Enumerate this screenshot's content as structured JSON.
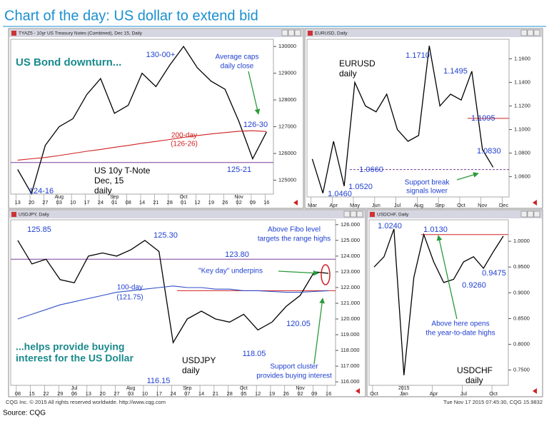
{
  "page": {
    "title": "Chart of the day: US dollar to extend bid",
    "footer_left": "CQG Inc. © 2015 All rights reserved worldwide. http://www.cqg.com",
    "footer_right": "Tue Nov 17 2015 07:45:30, CQG 15.9832",
    "source": "Source: CQG"
  },
  "chart_data": [
    {
      "type": "line",
      "header": "TYAZ5 - 10yr US Treasury Notes (Combined), Dec 15, Daily",
      "categories": [
        "13",
        "20",
        "27",
        "03",
        "10",
        "17",
        "24",
        "01",
        "08",
        "14",
        "21",
        "28",
        "01",
        "12",
        "19",
        "26",
        "02",
        "09",
        "16"
      ],
      "xticks_upper": [
        {
          "value": 3,
          "label": "Aug"
        },
        {
          "value": 7,
          "label": "Sep"
        },
        {
          "value": 12,
          "label": "Oct"
        },
        {
          "value": 16,
          "label": "Nov"
        }
      ],
      "series": [
        {
          "color": "#000000",
          "values": [
            125400,
            124500,
            126300,
            127000,
            127300,
            128200,
            128800,
            127500,
            127800,
            129000,
            128500,
            129300,
            130000,
            129200,
            128700,
            128400,
            127200,
            125800,
            126800
          ]
        },
        {
          "color": "#d02020",
          "values": [
            125750,
            125800,
            125850,
            125920,
            126000,
            126080,
            126150,
            126230,
            126300,
            126380,
            126450,
            126520,
            126600,
            126670,
            126730,
            126780,
            126830,
            126850,
            126820
          ]
        }
      ],
      "hlines": [
        {
          "value": 125660,
          "color": "#7a3f9a"
        }
      ],
      "ylim": [
        124480,
        130270
      ],
      "yticks": [
        125000,
        126000,
        127000,
        128000,
        129000,
        130000
      ],
      "annotations": [
        "US Bond downturn...",
        "130-00+",
        "Average caps",
        "daily close",
        "200-day",
        "(126-26)",
        "126-30",
        "125-21",
        "124-16",
        "US 10y T-Note",
        "Dec, 15",
        "daily"
      ]
    },
    {
      "type": "line",
      "header": "EURUSD, Daily",
      "categories": [
        "Mar",
        null,
        "Apr",
        null,
        "May",
        null,
        "Jun",
        null,
        "Jul",
        null,
        "Aug",
        null,
        "Sep",
        null,
        "Oct",
        null,
        "Nov",
        null,
        "Dec"
      ],
      "series": [
        {
          "color": "#000000",
          "values": [
            1.075,
            1.046,
            1.09,
            1.052,
            1.14,
            1.12,
            1.115,
            1.13,
            1.1,
            1.09,
            1.095,
            1.171,
            1.12,
            1.13,
            1.125,
            1.1495,
            1.083,
            1.068,
            null
          ]
        }
      ],
      "hlines": [
        {
          "value": 1.1095,
          "color": "#d02020"
        },
        {
          "value": 1.066,
          "color": "#7a3f9a"
        }
      ],
      "ylim": [
        1.0428,
        1.1766
      ],
      "yticks": [
        {
          "value": 1.06,
          "label": "1.0600"
        },
        {
          "value": 1.08,
          "label": "1.0800"
        },
        {
          "value": 1.1,
          "label": "1.1000"
        },
        {
          "value": 1.12,
          "label": "1.1200"
        },
        {
          "value": 1.14,
          "label": "1.1400"
        },
        {
          "value": 1.16,
          "label": "1.1600"
        }
      ],
      "annotations": [
        "EURUSD",
        "daily",
        "1.1710",
        "1.1495",
        "1.1095",
        "1.0830",
        "1.0660",
        "1.0520",
        "1.0460",
        "Support break",
        "signals lower"
      ]
    },
    {
      "type": "line",
      "header": "USDJPY, Daily",
      "categories": [
        "08",
        "15",
        "22",
        "29",
        "06",
        "13",
        "20",
        "27",
        "03",
        "10",
        "17",
        "24",
        "07",
        "14",
        "21",
        "28",
        "05",
        "12",
        "19",
        "26",
        "02",
        "09",
        "16"
      ],
      "xticks_upper": [
        {
          "value": 4,
          "label": "Jul"
        },
        {
          "value": 8,
          "label": "Aug"
        },
        {
          "value": 12,
          "label": "Sep"
        },
        {
          "value": 16,
          "label": "Oct"
        },
        {
          "value": 20,
          "label": "Nov"
        }
      ],
      "series": [
        {
          "color": "#000000",
          "values": [
            125.0,
            123.5,
            123.8,
            122.5,
            122.3,
            124.0,
            124.2,
            124.0,
            124.4,
            125.0,
            124.3,
            118.5,
            120.0,
            120.5,
            120.0,
            119.8,
            120.3,
            119.3,
            119.8,
            120.8,
            121.5,
            123.0,
            122.9
          ]
        },
        {
          "color": "#3050c8",
          "values": [
            120.0,
            120.3,
            120.6,
            120.9,
            121.1,
            121.3,
            121.5,
            121.7,
            121.8,
            121.9,
            122.0,
            122.1,
            122.0,
            122.0,
            121.9,
            121.9,
            121.8,
            121.8,
            121.75,
            121.7,
            121.7,
            121.75,
            121.8
          ]
        }
      ],
      "hlines": [
        {
          "value": 123.8,
          "color": "#7a3f9a"
        },
        {
          "value": 121.8,
          "color": "#d02020"
        }
      ],
      "ylim": [
        115.78,
        126.31
      ],
      "yticks": [
        {
          "value": 116,
          "label": "116.000"
        },
        {
          "value": 117,
          "label": "117.000"
        },
        {
          "value": 118,
          "label": "118.000"
        },
        {
          "value": 119,
          "label": "119.000"
        },
        {
          "value": 120,
          "label": "120.000"
        },
        {
          "value": 121,
          "label": "121.000"
        },
        {
          "value": 122,
          "label": "122.000"
        },
        {
          "value": 123,
          "label": "123.000"
        },
        {
          "value": 124,
          "label": "124.000"
        },
        {
          "value": 125,
          "label": "125.000"
        },
        {
          "value": 126,
          "label": "126.000"
        }
      ],
      "annotations": [
        "125.85",
        "125.30",
        "123.80",
        "Above Fibo level",
        "targets the range highs",
        "\"Key day\" underpins",
        "100-day",
        "(121.75)",
        "120.05",
        "118.05",
        "116.15",
        "USDJPY",
        "daily",
        "Support cluster",
        "provides buying interest",
        "...helps provide buying",
        "interest for the US Dollar"
      ]
    },
    {
      "type": "line",
      "header": "USDCHF, Daily",
      "categories": [
        "Oct",
        null,
        null,
        "Jan",
        null,
        null,
        "Apr",
        null,
        null,
        "Jul",
        null,
        null,
        "Oct",
        null
      ],
      "xticks_upper": [
        {
          "value": 3,
          "label": "2015"
        }
      ],
      "series": [
        {
          "color": "#000000",
          "values": [
            0.95,
            0.97,
            1.024,
            0.74,
            0.93,
            1.013,
            0.96,
            0.92,
            0.926,
            0.96,
            0.97,
            0.9475,
            0.98,
            1.01
          ]
        }
      ],
      "hlines": [
        {
          "value": 1.013,
          "color": "#d02020"
        }
      ],
      "ylim": [
        0.7204,
        1.0417
      ],
      "yticks": [
        {
          "value": 0.75,
          "label": "0.7500"
        },
        {
          "value": 0.8,
          "label": "0.8000"
        },
        {
          "value": 0.85,
          "label": "0.8500"
        },
        {
          "value": 0.9,
          "label": "0.9000"
        },
        {
          "value": 0.95,
          "label": "0.9500"
        },
        {
          "value": 1.0,
          "label": "1.0000"
        }
      ],
      "annotations": [
        "1.0240",
        "1.0130",
        "0.9475",
        "0.9260",
        "Above here opens",
        "the year-to-date highs",
        "USDCHF",
        "daily"
      ]
    }
  ]
}
